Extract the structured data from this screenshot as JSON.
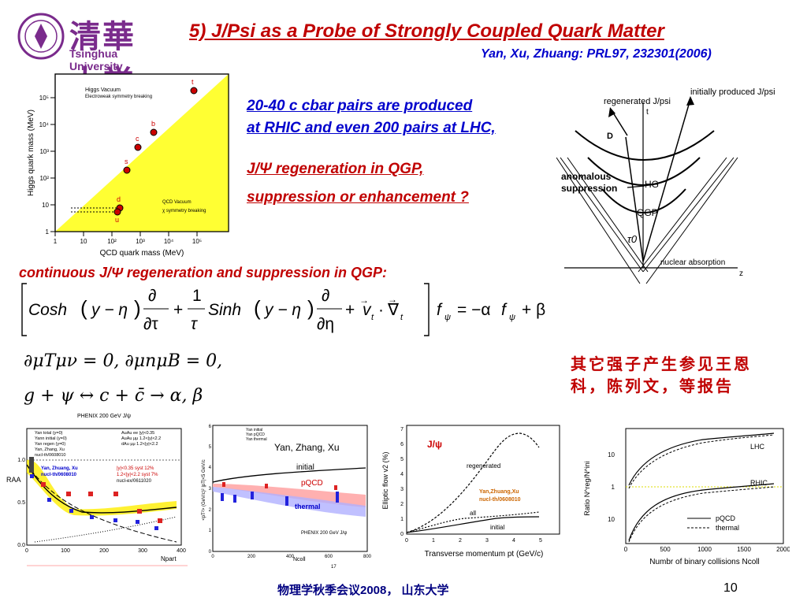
{
  "logo": {
    "cn": "清華大学",
    "en": "Tsinghua University"
  },
  "title": "5) J/Psi as a Probe of Strongly Coupled Quark Matter",
  "subtitle": "Yan, Xu, Zhuang: PRL97, 232301(2006)",
  "text": {
    "line1": "20-40 c cbar pairs are produced",
    "line2": "at RHIC and even 200 pairs at LHC,",
    "line3": "J/Ψ regeneration in QGP,",
    "line4": "suppression or enhancement ?",
    "continuous": "continuous J/Ψ regeneration and suppression in QGP:",
    "cn_note_line1": "其它强子产生参见王恩",
    "cn_note_line2": "科，陈列文，等报告"
  },
  "equations": {
    "eq2": "∂μTμν = 0,     ∂μnμB = 0,",
    "eq3": "g + ψ ↔ c + c̄      →    α, β"
  },
  "fig_mass": {
    "labels": {
      "higgs_vac": "Higgs Vacuum",
      "ew": "Electroweak symmetry breaking",
      "qcd_vac": "QCD Vacuum",
      "chi": "χ symmetry breaking",
      "ylabel": "Higgs quark mass (MeV)",
      "xlabel": "QCD quark mass (MeV)"
    },
    "quarks": [
      "t",
      "b",
      "c",
      "s",
      "d",
      "u"
    ],
    "xticks": [
      "1",
      "10",
      "10²",
      "10³",
      "10⁴",
      "10⁵"
    ],
    "yticks": [
      "1",
      "10",
      "10²",
      "10³",
      "10⁴",
      "10⁵"
    ]
  },
  "fig_hg": {
    "labels": {
      "regen": "regenerated J/psi",
      "init": "initially produced J/psi",
      "t": "t",
      "D": "D",
      "anomalous": "anomalous",
      "suppression": "suppression",
      "HG": "HG",
      "QGP": "QGP",
      "tau0": "τ0",
      "nuclear": "nuclear absorption",
      "z": "z"
    }
  },
  "fig_raa": {
    "title": "PHENIX 200 GeV J/ψ",
    "legend": [
      "Yan total (y=0)",
      "Yann initial (y=0)",
      "Yan regen (y=0)",
      "Yan, Zhang, Xu",
      "nucl-th/0608010"
    ],
    "data_legend": [
      "AuAu ee |y|<0.35",
      "AuAu μμ 1.2<|y|<2.2",
      "dAu μμ 1.2<|y|<2.2"
    ],
    "blue_note": [
      "Yan, Zhuang, Xu",
      "nucl-th/0608010"
    ],
    "syst": [
      "|y|<0.35 syst 12%",
      "1.2<|y|<2.2 syst 7%",
      "nucl-ex/0611020"
    ],
    "ylabel": "RAA",
    "xlabel": "Npart",
    "xticks": [
      "0",
      "100",
      "200",
      "300",
      "400"
    ],
    "yticks": [
      "0.0",
      "0.5",
      "1.0"
    ]
  },
  "fig_pt": {
    "legend": [
      "Yan initial",
      "Yan pQCD",
      "Yan thermal"
    ],
    "big_label": "Yan, Zhang, Xu",
    "labels": {
      "initial": "initial",
      "pqcd": "pQCD",
      "thermal": "thermal"
    },
    "footer": "PHENIX 200 GeV J/ψ",
    "ylabel": "<pT²> (GeV/c)²  |pT|<5 GeV/c",
    "xlabel": "Ncoll",
    "xticks": [
      "0",
      "200",
      "400",
      "600",
      "800"
    ],
    "yticks": [
      "0",
      "1",
      "2",
      "3",
      "4",
      "5",
      "6"
    ],
    "page_mark": "17"
  },
  "fig_v2": {
    "jpsi": "J/ψ",
    "labels": {
      "regenerated": "regenerated",
      "all": "all",
      "initial": "initial"
    },
    "note": [
      "Yan,Zhuang,Xu",
      "nucl-th/0608010"
    ],
    "ylabel": "Elliptic flow v2 (%)",
    "xlabel": "Transverse momentum pt (GeV/c)",
    "xticks": [
      "0",
      "1",
      "2",
      "3",
      "4",
      "5"
    ],
    "yticks": [
      "0",
      "1",
      "2",
      "3",
      "4",
      "5",
      "6",
      "7"
    ]
  },
  "fig_ratio": {
    "labels": {
      "lhc": "LHC",
      "rhic": "RHIC"
    },
    "legend": [
      "pQCD",
      "thermal"
    ],
    "ylabel": "Ratio N^reg/N^ini",
    "xlabel": "Numbr of binary collisions Ncoll",
    "xticks": [
      "0",
      "500",
      "1000",
      "1500",
      "2000"
    ],
    "yticks": [
      "10",
      "1",
      "10"
    ]
  },
  "footer": {
    "text": "物理学秋季会议2008，   山东大学",
    "page": "10"
  }
}
